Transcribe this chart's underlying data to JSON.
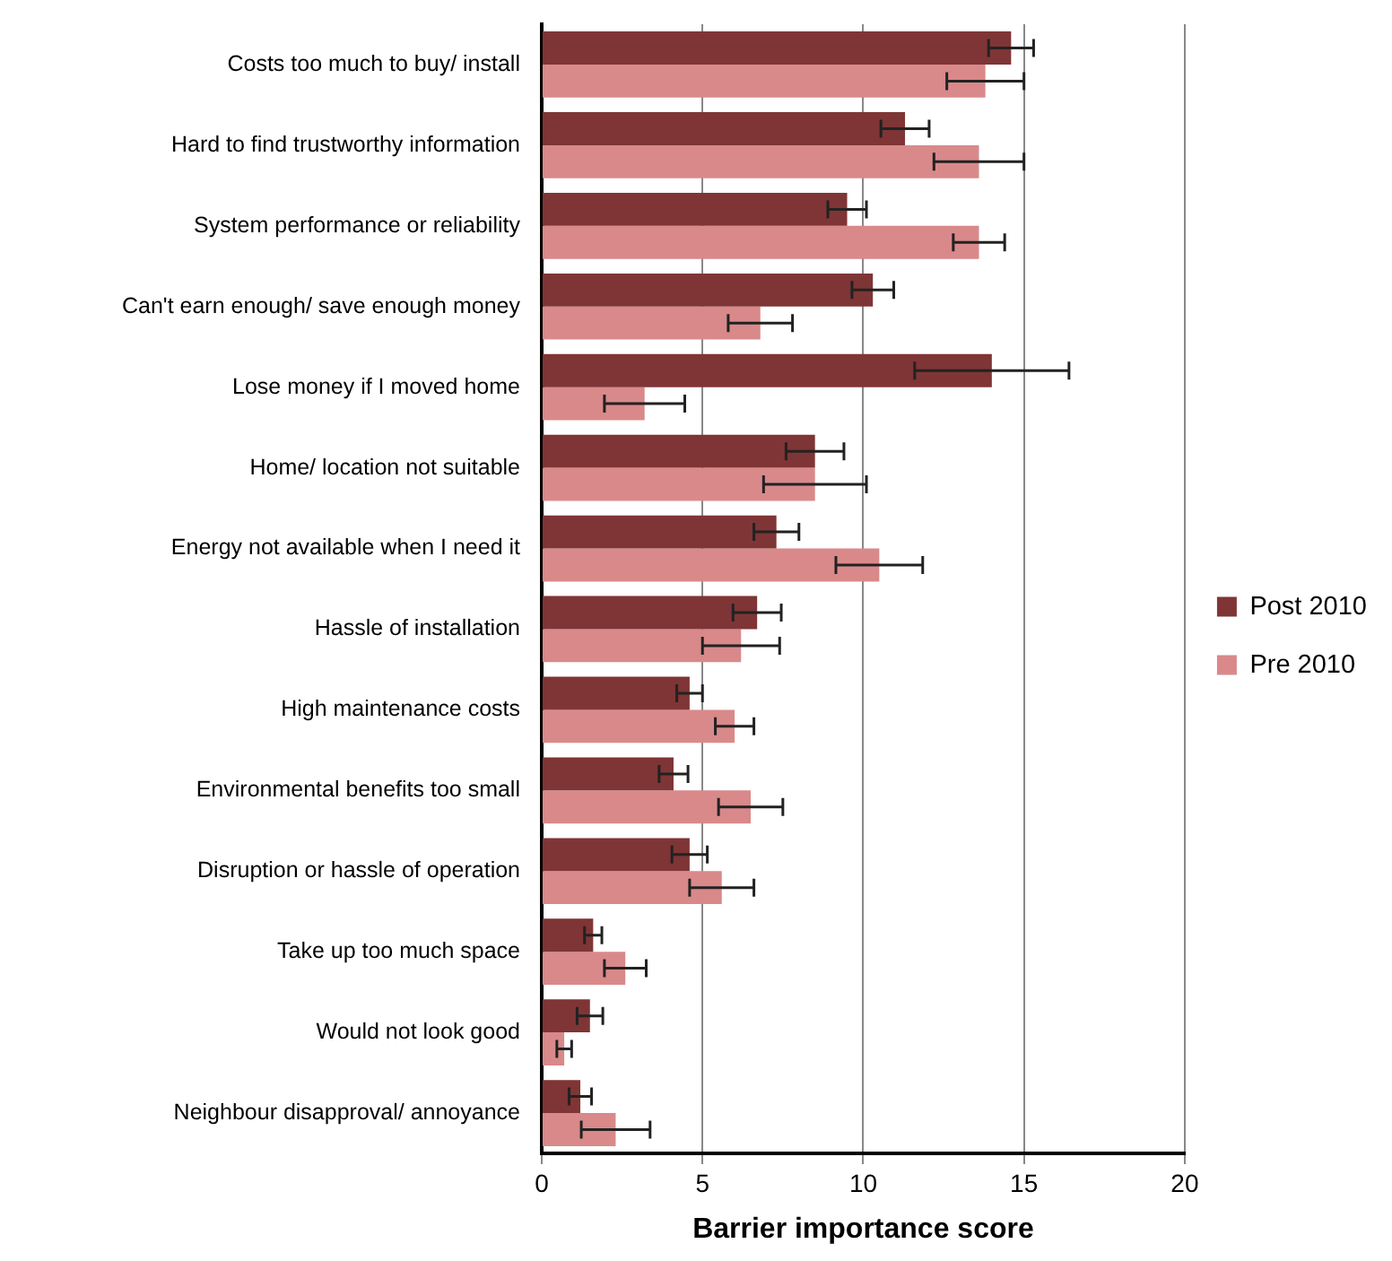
{
  "chart_data": {
    "type": "bar",
    "orientation": "horizontal",
    "xlabel": "Barrier importance score",
    "categories": [
      "Costs too much to buy/ install",
      "Hard to find trustworthy information",
      "System performance or reliability",
      "Can't earn enough/ save enough money",
      "Lose money if I moved home",
      "Home/ location not suitable",
      "Energy not available when I need it",
      "Hassle of installation",
      "High maintenance costs",
      "Environmental benefits too small",
      "Disruption or hassle of operation",
      "Take up too much space",
      "Would not look good",
      "Neighbour disapproval/ annoyance"
    ],
    "series": [
      {
        "name": "Post 2010",
        "color": "#7f3535",
        "values": [
          14.6,
          11.3,
          9.5,
          10.3,
          14.0,
          8.5,
          7.3,
          6.7,
          4.6,
          4.1,
          4.6,
          1.6,
          1.5,
          1.2
        ],
        "errors": [
          0.7,
          0.75,
          0.6,
          0.65,
          2.4,
          0.9,
          0.7,
          0.75,
          0.4,
          0.45,
          0.55,
          0.27,
          0.4,
          0.35
        ]
      },
      {
        "name": "Pre 2010",
        "color": "#d9898a",
        "values": [
          13.8,
          13.6,
          13.6,
          6.8,
          3.2,
          8.5,
          10.5,
          6.2,
          6.0,
          6.5,
          5.6,
          2.6,
          0.7,
          2.3
        ],
        "errors": [
          1.2,
          1.4,
          0.8,
          1.0,
          1.25,
          1.6,
          1.35,
          1.2,
          0.6,
          1.0,
          1.0,
          0.65,
          0.23,
          1.07
        ]
      }
    ],
    "xlim": [
      0,
      20
    ],
    "xticks": [
      0,
      5,
      10,
      15,
      20
    ],
    "grid": "x",
    "legend": "right"
  }
}
